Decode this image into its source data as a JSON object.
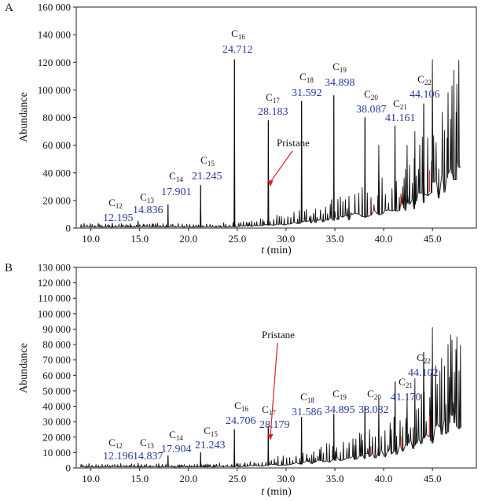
{
  "chart_data": [
    {
      "type": "line",
      "panel": "A",
      "xlabel_prefix": "t",
      "xlabel_unit": " (min)",
      "ylabel": "Abundance",
      "xlim": [
        8.5,
        49.5
      ],
      "ylim": [
        0,
        160000
      ],
      "x_ticks": [
        10,
        15,
        20,
        25,
        30,
        35,
        40,
        45
      ],
      "x_tick_labels": [
        "10.0",
        "15.0",
        "20.0",
        "25.0",
        "30.0",
        "35.0",
        "40.0",
        "45.0"
      ],
      "y_ticks": [
        0,
        20000,
        40000,
        60000,
        80000,
        100000,
        120000,
        140000,
        160000
      ],
      "y_tick_labels": [
        "0",
        "20 000",
        "40 000",
        "60 000",
        "80 000",
        "100 000",
        "120 000",
        "140 000",
        "160 000"
      ],
      "grid": false,
      "peaks": [
        {
          "name": "C",
          "sub": "12",
          "rt": "12.195",
          "x": 12.195,
          "y": 3500
        },
        {
          "name": "C",
          "sub": "13",
          "rt": "14.836",
          "x": 14.836,
          "y": 5000
        },
        {
          "name": "C",
          "sub": "14",
          "rt": "17.901",
          "x": 17.901,
          "y": 17000
        },
        {
          "name": "C",
          "sub": "15",
          "rt": "21.245",
          "x": 21.245,
          "y": 31000
        },
        {
          "name": "C",
          "sub": "16",
          "rt": "24.712",
          "x": 24.712,
          "y": 122000
        },
        {
          "name": "C",
          "sub": "17",
          "rt": "28.183",
          "x": 28.183,
          "y": 78000
        },
        {
          "name": "C",
          "sub": "18",
          "rt": "31.592",
          "x": 31.592,
          "y": 92000
        },
        {
          "name": "C",
          "sub": "19",
          "rt": "34.898",
          "x": 34.898,
          "y": 96000
        },
        {
          "name": "C",
          "sub": "20",
          "rt": "38.087",
          "x": 38.087,
          "y": 80000
        },
        {
          "name": "C",
          "sub": "21",
          "rt": "41.161",
          "x": 41.161,
          "y": 74000
        },
        {
          "name": "C",
          "sub": "22",
          "rt": "44.106",
          "x": 44.106,
          "y": 90000
        }
      ],
      "pristane": {
        "label": "Pristane",
        "x": 28.4,
        "y": 30000
      },
      "extra_spikes": [
        {
          "x": 45.0,
          "y": 122000
        },
        {
          "x": 46.6,
          "y": 98000
        },
        {
          "x": 47.0,
          "y": 103000
        },
        {
          "x": 47.5,
          "y": 104000
        },
        {
          "x": 43.2,
          "y": 70000
        },
        {
          "x": 39.5,
          "y": 60000
        },
        {
          "x": 42.4,
          "y": 60000
        }
      ]
    },
    {
      "type": "line",
      "panel": "B",
      "xlabel_prefix": "t",
      "xlabel_unit": " (min)",
      "ylabel": "Abundance",
      "xlim": [
        8.5,
        49.5
      ],
      "ylim": [
        0,
        130000
      ],
      "x_ticks": [
        10,
        15,
        20,
        25,
        30,
        35,
        40,
        45
      ],
      "x_tick_labels": [
        "10.0",
        "15.0",
        "20.0",
        "25.0",
        "30.0",
        "35.0",
        "40.0",
        "45.0"
      ],
      "y_ticks": [
        0,
        10000,
        20000,
        30000,
        40000,
        50000,
        60000,
        70000,
        80000,
        90000,
        100000,
        110000,
        120000,
        130000
      ],
      "y_tick_labels": [
        "0",
        "10 000",
        "20 000",
        "30 000",
        "40 000",
        "50 000",
        "60 000",
        "70 000",
        "80 000",
        "90 000",
        "100 000",
        "110 000",
        "120 000",
        "130 000"
      ],
      "grid": false,
      "peaks": [
        {
          "name": "C",
          "sub": "12",
          "rt": "12.196",
          "x": 12.196,
          "y": 2000
        },
        {
          "name": "C",
          "sub": "13",
          "rt": "14.837",
          "x": 14.837,
          "y": 3000
        },
        {
          "name": "C",
          "sub": "14",
          "rt": "17.904",
          "x": 17.904,
          "y": 8000
        },
        {
          "name": "C",
          "sub": "15",
          "rt": "21.243",
          "x": 21.243,
          "y": 10000
        },
        {
          "name": "C",
          "sub": "16",
          "rt": "24.706",
          "x": 24.706,
          "y": 25000
        },
        {
          "name": "C",
          "sub": "17",
          "rt": "28.179",
          "x": 28.179,
          "y": 27000
        },
        {
          "name": "C",
          "sub": "18",
          "rt": "31.586",
          "x": 31.586,
          "y": 33000
        },
        {
          "name": "C",
          "sub": "19",
          "rt": "34.895",
          "x": 34.895,
          "y": 35000
        },
        {
          "name": "C",
          "sub": "20",
          "rt": "38.082",
          "x": 38.082,
          "y": 40000
        },
        {
          "name": "C",
          "sub": "21",
          "rt": "41.170",
          "x": 41.17,
          "y": 56000
        },
        {
          "name": "C",
          "sub": "22",
          "rt": "44.102",
          "x": 44.102,
          "y": 75000
        }
      ],
      "pristane": {
        "label": "Pristane",
        "x": 28.4,
        "y": 18000
      },
      "extra_spikes": [
        {
          "x": 45.0,
          "y": 91000
        },
        {
          "x": 46.6,
          "y": 80000
        },
        {
          "x": 47.0,
          "y": 83000
        },
        {
          "x": 47.5,
          "y": 85000
        },
        {
          "x": 43.2,
          "y": 58000
        },
        {
          "x": 39.5,
          "y": 45000
        },
        {
          "x": 42.4,
          "y": 48000
        }
      ]
    }
  ]
}
